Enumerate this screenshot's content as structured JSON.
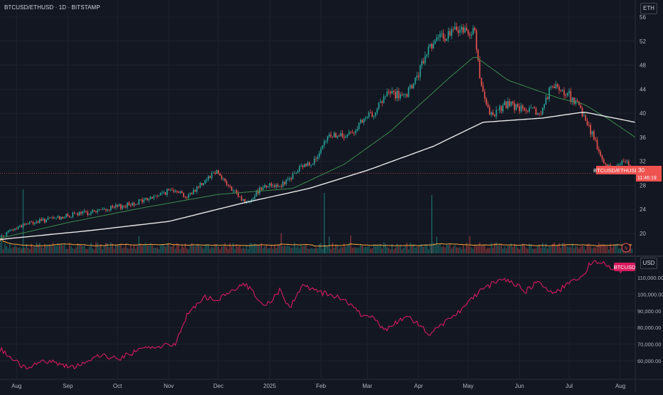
{
  "header": {
    "symbol_title": "BTCUSD/ETHUSD · 1D · BITSTAMP",
    "top_scale_unit": "ETH",
    "bottom_scale_unit": "USD"
  },
  "price_tag": {
    "label": "BTCUSD/ETHUSD",
    "value": "30",
    "countdown": "11:46:19"
  },
  "btc_tag": {
    "label": "BTCUSD"
  },
  "colors": {
    "background": "#131722",
    "grid": "#1e222d",
    "up": "#26a69a",
    "down": "#ef5350",
    "ma_short": "#3b8a4d",
    "ma_long": "#e9e9e9",
    "volume_ma": "#f7a63a",
    "btc_line": "#d81b60",
    "price_line": "#ef5350"
  },
  "chart_data": [
    {
      "type": "candlestick",
      "title": "BTCUSD/ETHUSD · 1D · BITSTAMP",
      "unit": "ETH",
      "x_ticks": [
        "Aug",
        "Sep",
        "Oct",
        "Nov",
        "Dec",
        "2025",
        "Feb",
        "Mar",
        "Apr",
        "May",
        "Jun",
        "Jul",
        "Aug"
      ],
      "y_ticks": [
        "20",
        "24",
        "28",
        "32",
        "36",
        "40",
        "44",
        "48",
        "52",
        "56"
      ],
      "ylim": [
        17.5,
        56.5
      ],
      "last_value": 30,
      "key_points": [
        [
          "2024-07-22",
          19.5
        ],
        [
          "2024-08-05",
          21.5
        ],
        [
          "2024-08-20",
          22.3
        ],
        [
          "2024-09-05",
          23.1
        ],
        [
          "2024-09-20",
          23.8
        ],
        [
          "2024-10-05",
          24.6
        ],
        [
          "2024-10-20",
          25.8
        ],
        [
          "2024-11-05",
          27.5
        ],
        [
          "2024-11-12",
          26.0
        ],
        [
          "2024-11-25",
          29.5
        ],
        [
          "2024-11-30",
          30.5
        ],
        [
          "2024-12-08",
          27.5
        ],
        [
          "2024-12-18",
          25.0
        ],
        [
          "2024-12-28",
          28.0
        ],
        [
          "2025-01-10",
          28.2
        ],
        [
          "2025-01-20",
          31.0
        ],
        [
          "2025-01-30",
          32.5
        ],
        [
          "2025-02-06",
          36.5
        ],
        [
          "2025-02-16",
          36.0
        ],
        [
          "2025-02-26",
          38.5
        ],
        [
          "2025-03-06",
          40.5
        ],
        [
          "2025-03-14",
          43.5
        ],
        [
          "2025-03-24",
          42.5
        ],
        [
          "2025-04-01",
          46.5
        ],
        [
          "2025-04-08",
          51.5
        ],
        [
          "2025-04-18",
          53.0
        ],
        [
          "2025-04-25",
          54.0
        ],
        [
          "2025-05-05",
          53.5
        ],
        [
          "2025-05-09",
          44.0
        ],
        [
          "2025-05-14",
          39.5
        ],
        [
          "2025-05-24",
          41.5
        ],
        [
          "2025-06-04",
          40.5
        ],
        [
          "2025-06-14",
          40.0
        ],
        [
          "2025-06-20",
          44.5
        ],
        [
          "2025-07-01",
          43.0
        ],
        [
          "2025-07-08",
          40.5
        ],
        [
          "2025-07-16",
          36.0
        ],
        [
          "2025-07-22",
          31.5
        ],
        [
          "2025-07-28",
          30.5
        ],
        [
          "2025-08-04",
          32.5
        ],
        [
          "2025-08-08",
          30.0
        ]
      ],
      "moving_averages": [
        {
          "name": "MA short",
          "color": "#3b8a4d",
          "points": [
            [
              "2024-07-22",
              19.2
            ],
            [
              "2024-09-01",
              21.8
            ],
            [
              "2024-10-15",
              24.2
            ],
            [
              "2024-12-01",
              26.5
            ],
            [
              "2025-01-15",
              27.5
            ],
            [
              "2025-02-15",
              31.5
            ],
            [
              "2025-03-15",
              37.0
            ],
            [
              "2025-04-20",
              46.0
            ],
            [
              "2025-05-05",
              49.5
            ],
            [
              "2025-05-25",
              45.5
            ],
            [
              "2025-06-25",
              42.5
            ],
            [
              "2025-07-10",
              41.5
            ],
            [
              "2025-07-25",
              39.0
            ],
            [
              "2025-08-10",
              36.0
            ]
          ]
        },
        {
          "name": "MA long",
          "color": "#e9e9e9",
          "points": [
            [
              "2024-07-22",
              19.0
            ],
            [
              "2024-09-15",
              20.5
            ],
            [
              "2024-11-01",
              22.0
            ],
            [
              "2024-12-15",
              25.0
            ],
            [
              "2025-01-25",
              27.5
            ],
            [
              "2025-03-01",
              30.5
            ],
            [
              "2025-04-10",
              34.5
            ],
            [
              "2025-05-10",
              38.5
            ],
            [
              "2025-06-15",
              39.2
            ],
            [
              "2025-07-10",
              40.2
            ],
            [
              "2025-08-10",
              38.5
            ]
          ]
        }
      ]
    },
    {
      "type": "line",
      "series_label": "BTCUSD",
      "unit": "USD",
      "y_ticks": [
        "60,000.00",
        "70,000.00",
        "80,000.00",
        "90,000.00",
        "100,000.00",
        "110,000.00"
      ],
      "ylim": [
        55000,
        118000
      ],
      "key_points": [
        [
          "2024-07-22",
          67000
        ],
        [
          "2024-08-05",
          56000
        ],
        [
          "2024-08-20",
          60000
        ],
        [
          "2024-09-05",
          56000
        ],
        [
          "2024-09-20",
          63500
        ],
        [
          "2024-10-01",
          61000
        ],
        [
          "2024-10-15",
          67000
        ],
        [
          "2024-10-25",
          68500
        ],
        [
          "2024-11-05",
          70000
        ],
        [
          "2024-11-12",
          88000
        ],
        [
          "2024-11-22",
          98000
        ],
        [
          "2024-12-01",
          97000
        ],
        [
          "2024-12-17",
          106000
        ],
        [
          "2024-12-30",
          93000
        ],
        [
          "2025-01-07",
          102000
        ],
        [
          "2025-01-13",
          92000
        ],
        [
          "2025-01-21",
          105000
        ],
        [
          "2025-02-01",
          101000
        ],
        [
          "2025-02-15",
          97000
        ],
        [
          "2025-02-25",
          88000
        ],
        [
          "2025-03-05",
          87000
        ],
        [
          "2025-03-11",
          78000
        ],
        [
          "2025-03-25",
          87000
        ],
        [
          "2025-04-08",
          76000
        ],
        [
          "2025-04-20",
          85000
        ],
        [
          "2025-05-01",
          95000
        ],
        [
          "2025-05-10",
          103000
        ],
        [
          "2025-05-22",
          110000
        ],
        [
          "2025-06-05",
          102000
        ],
        [
          "2025-06-12",
          108000
        ],
        [
          "2025-06-22",
          100000
        ],
        [
          "2025-07-01",
          107000
        ],
        [
          "2025-07-10",
          112000
        ],
        [
          "2025-07-14",
          119000
        ],
        [
          "2025-07-22",
          118000
        ],
        [
          "2025-08-01",
          114000
        ],
        [
          "2025-08-08",
          116500
        ]
      ]
    }
  ]
}
